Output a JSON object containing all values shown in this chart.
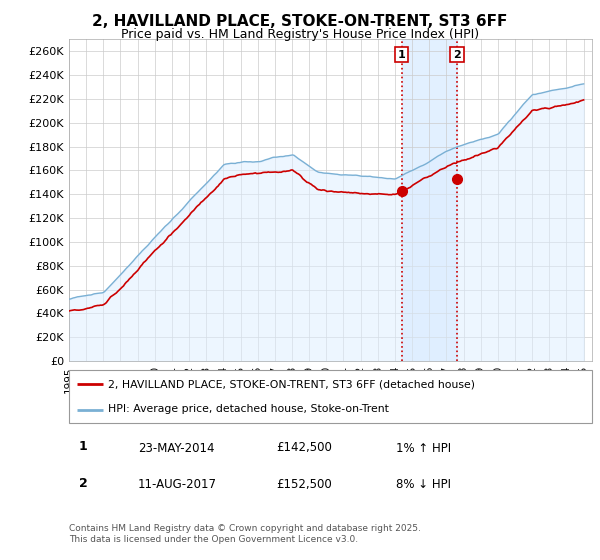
{
  "title": "2, HAVILLAND PLACE, STOKE-ON-TRENT, ST3 6FF",
  "subtitle": "Price paid vs. HM Land Registry's House Price Index (HPI)",
  "ylim": [
    0,
    270000
  ],
  "yticks": [
    0,
    20000,
    40000,
    60000,
    80000,
    100000,
    120000,
    140000,
    160000,
    180000,
    200000,
    220000,
    240000,
    260000
  ],
  "xlim_start": 1995.0,
  "xlim_end": 2025.5,
  "property_color": "#cc0000",
  "hpi_color": "#7ab0d4",
  "hpi_fill_color": "#ddeeff",
  "sale1_date": 2014.39,
  "sale1_price": 142500,
  "sale2_date": 2017.61,
  "sale2_price": 152500,
  "legend_property": "2, HAVILLAND PLACE, STOKE-ON-TRENT, ST3 6FF (detached house)",
  "legend_hpi": "HPI: Average price, detached house, Stoke-on-Trent",
  "table_row1": [
    "1",
    "23-MAY-2014",
    "£142,500",
    "1% ↑ HPI"
  ],
  "table_row2": [
    "2",
    "11-AUG-2017",
    "£152,500",
    "8% ↓ HPI"
  ],
  "footnote": "Contains HM Land Registry data © Crown copyright and database right 2025.\nThis data is licensed under the Open Government Licence v3.0.",
  "background_color": "#ffffff",
  "grid_color": "#cccccc"
}
